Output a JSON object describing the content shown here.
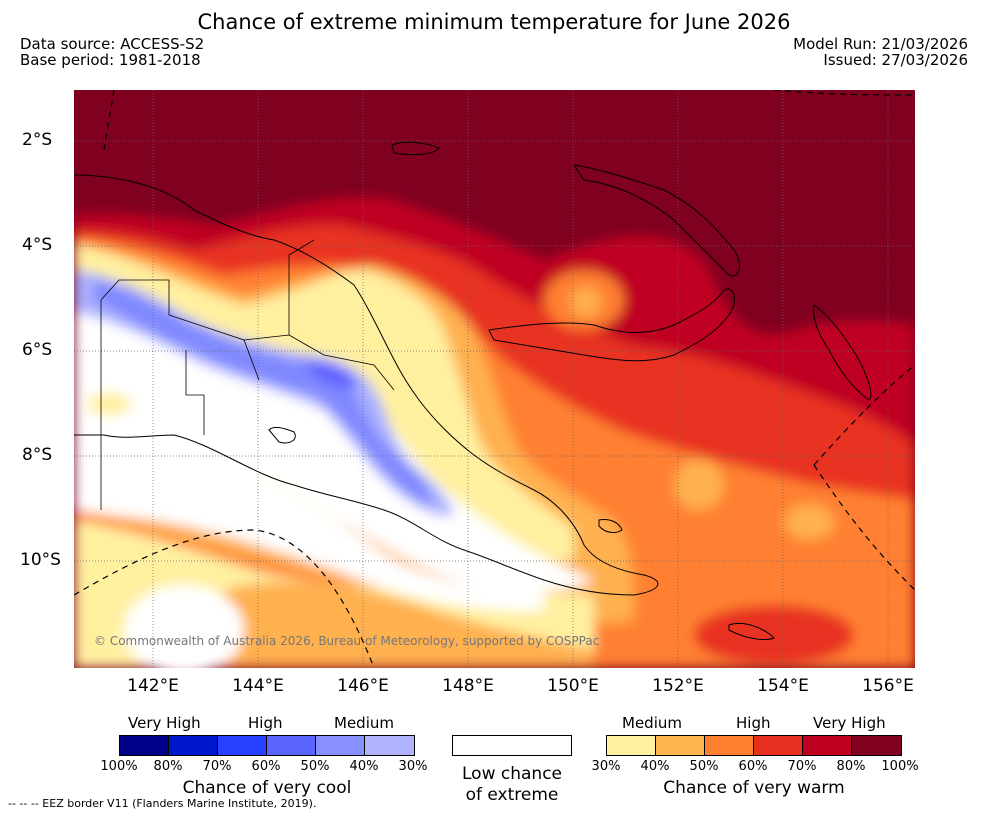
{
  "header": {
    "title": "Chance of extreme minimum temperature for June 2026",
    "data_source": "Data source: ACCESS-S2",
    "base_period": "Base period: 1981-2018",
    "model_run": "Model Run: 21/03/2026",
    "issued": "Issued: 27/03/2026"
  },
  "map": {
    "lat_labels": [
      "2°S",
      "4°S",
      "6°S",
      "8°S",
      "10°S"
    ],
    "lon_labels": [
      "142°E",
      "144°E",
      "146°E",
      "148°E",
      "150°E",
      "152°E",
      "154°E",
      "156°E"
    ],
    "copyright": "© Commonwealth of Australia 2026, Bureau of Meteorology, supported by COSPPac",
    "colors": {
      "very_high_warm": "#800020",
      "high_warm_80": "#c00020",
      "warm_70": "#e83020",
      "warm_60": "#ff8030",
      "warm_50": "#ffb050",
      "warm_40": "#fff0a0",
      "cool_30": "#aab0ff",
      "cool_40": "#8088ff",
      "cool_50": "#6060ff",
      "low": "#ffffff"
    }
  },
  "legend": {
    "cool": {
      "levels": [
        "Very High",
        "High",
        "Medium"
      ],
      "ticks": [
        "100%",
        "80%",
        "70%",
        "60%",
        "50%",
        "40%",
        "30%"
      ],
      "colors": [
        "#000088",
        "#0018cc",
        "#2840ff",
        "#5c64ff",
        "#8890ff",
        "#b0b4ff"
      ],
      "caption": "Chance of very cool"
    },
    "low": {
      "caption_line1": "Low chance",
      "caption_line2": "of extreme"
    },
    "warm": {
      "levels": [
        "Medium",
        "High",
        "Very High"
      ],
      "ticks": [
        "30%",
        "40%",
        "50%",
        "60%",
        "70%",
        "80%",
        "100%"
      ],
      "colors": [
        "#fff0a0",
        "#ffb450",
        "#ff8030",
        "#e83020",
        "#c00020",
        "#800020"
      ],
      "caption": "Chance of very warm"
    }
  },
  "footer": {
    "eez_note": "--  --  -- EEZ border V11 (Flanders Marine Institute, 2019)."
  }
}
